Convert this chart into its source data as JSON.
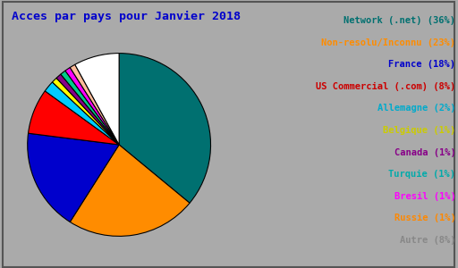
{
  "title": "Acces par pays pour Janvier 2018",
  "legend_labels": [
    "Network (.net) (36%)",
    "Non-resolu/Inconnu (23%)",
    "France (18%)",
    "US Commercial (.com) (8%)",
    "Allemagne (2%)",
    "Belgique (1%)",
    "Canada (1%)",
    "Turquie (1%)",
    "Bresil (1%)",
    "Russie (1%)",
    "Autre (8%)"
  ],
  "sizes": [
    36,
    23,
    18,
    8,
    2,
    1,
    1,
    1,
    1,
    1,
    8
  ],
  "pie_colors": [
    "#007070",
    "#FF8C00",
    "#0000CC",
    "#FF0000",
    "#00CCFF",
    "#FFFF00",
    "#880088",
    "#00CC88",
    "#FF00FF",
    "#FFBB99",
    "#FFFFFF"
  ],
  "legend_text_colors": [
    "#007070",
    "#FF8C00",
    "#0000CC",
    "#CC0000",
    "#00AACC",
    "#CCCC00",
    "#880088",
    "#00AAAA",
    "#FF00FF",
    "#FF8800",
    "#888888"
  ],
  "background_color": "#AAAAAA",
  "title_color": "#0000CC",
  "title_fontsize": 9.5,
  "legend_fontsize": 7.5,
  "border_color": "#555555"
}
